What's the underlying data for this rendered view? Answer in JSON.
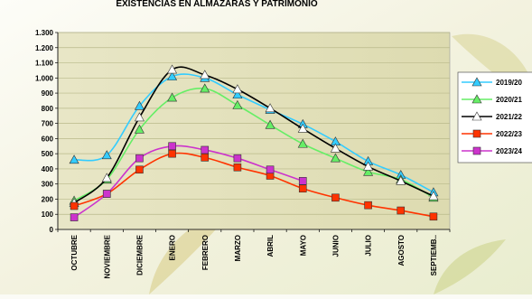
{
  "chart_data": {
    "type": "line",
    "title": "EXISTENCIAS EN ALMAZARAS Y PATRIMONIO",
    "xlabel": "",
    "ylabel": "",
    "categories": [
      "OCTUBRE",
      "NOVIEMBRE",
      "DICIEMBRE",
      "ENERO",
      "FEBRERO",
      "MARZO",
      "ABRIL",
      "MAYO",
      "JUNIO",
      "JULIO",
      "AGOSTO",
      "SEPTIEMB.."
    ],
    "ylim": [
      0,
      1300
    ],
    "yticks": [
      0,
      100,
      200,
      300,
      400,
      500,
      600,
      700,
      800,
      900,
      1000,
      1100,
      1200,
      1300
    ],
    "ytick_labels": [
      "0",
      "100",
      "200",
      "300",
      "400",
      "500",
      "600",
      "700",
      "800",
      "900",
      "1.000",
      "1.100",
      "1.200",
      "1.300"
    ],
    "grid": "horizontal",
    "legend_position": "right",
    "series": [
      {
        "name": "2019/20",
        "color": "#33ccff",
        "marker": "triangle",
        "values": [
          460,
          490,
          815,
          1010,
          1000,
          890,
          790,
          695,
          580,
          450,
          360,
          245
        ]
      },
      {
        "name": "2020/21",
        "color": "#66ee66",
        "marker": "triangle",
        "values": [
          190,
          330,
          660,
          870,
          930,
          820,
          690,
          565,
          470,
          380,
          330,
          210
        ]
      },
      {
        "name": "2021/22",
        "color": "#000000",
        "marker": "triangle",
        "values": [
          175,
          340,
          740,
          1055,
          1020,
          925,
          800,
          665,
          535,
          415,
          320,
          220
        ]
      },
      {
        "name": "2022/23",
        "color": "#ff3300",
        "marker": "square",
        "values": [
          155,
          235,
          395,
          500,
          475,
          410,
          355,
          270,
          210,
          160,
          125,
          85
        ]
      },
      {
        "name": "2023/24",
        "color": "#cc33cc",
        "marker": "square",
        "values": [
          80,
          235,
          470,
          550,
          525,
          470,
          395,
          320,
          null,
          null,
          null,
          null
        ]
      }
    ]
  }
}
